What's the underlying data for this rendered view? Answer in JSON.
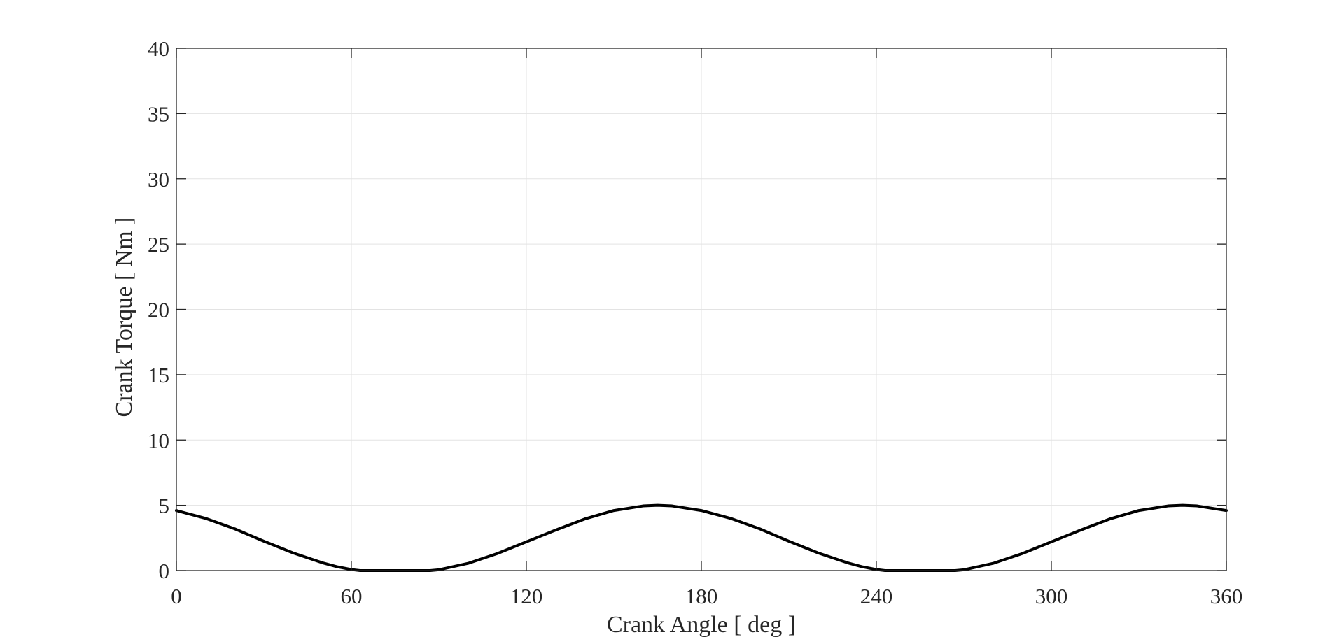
{
  "chart_data": {
    "type": "line",
    "xlabel": "Crank Angle [ deg ]",
    "ylabel": "Crank Torque [ Nm ]",
    "xlim": [
      0,
      360
    ],
    "ylim": [
      0,
      40
    ],
    "xticks": [
      0,
      60,
      120,
      180,
      240,
      300,
      360
    ],
    "yticks": [
      0,
      5,
      10,
      15,
      20,
      25,
      30,
      35,
      40
    ],
    "grid": true,
    "line_color": "#000000",
    "series": [
      {
        "x": [
          0,
          10,
          20,
          30,
          40,
          50,
          55,
          60,
          63,
          70,
          80,
          87,
          90,
          100,
          110,
          120,
          130,
          140,
          150,
          160,
          165,
          170,
          180,
          190,
          200,
          210,
          220,
          230,
          235,
          240,
          243,
          250,
          260,
          267,
          270,
          280,
          290,
          300,
          310,
          320,
          330,
          340,
          345,
          350,
          360
        ],
        "y": [
          4.6,
          4.0,
          3.2,
          2.25,
          1.35,
          0.6,
          0.3,
          0.08,
          0.0,
          0.0,
          0.0,
          0.0,
          0.06,
          0.55,
          1.3,
          2.2,
          3.1,
          3.95,
          4.6,
          4.95,
          5.0,
          4.95,
          4.6,
          4.0,
          3.2,
          2.25,
          1.35,
          0.6,
          0.3,
          0.08,
          0.0,
          0.0,
          0.0,
          0.0,
          0.06,
          0.55,
          1.3,
          2.2,
          3.1,
          3.95,
          4.6,
          4.95,
          5.0,
          4.95,
          4.6
        ]
      }
    ]
  }
}
